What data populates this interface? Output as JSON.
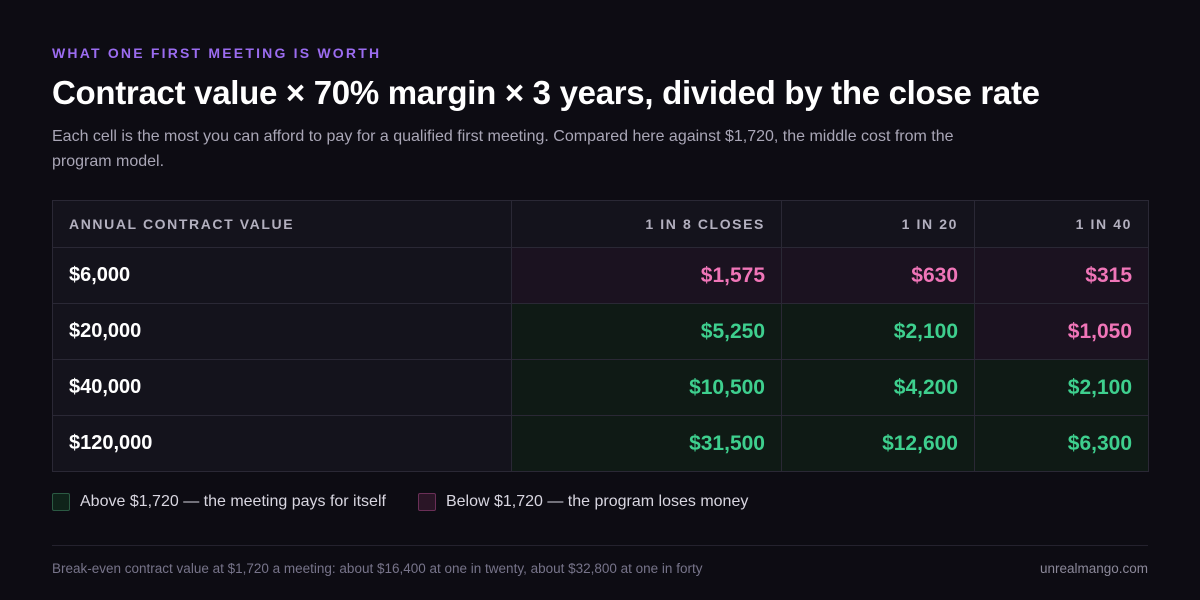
{
  "header": {
    "eyebrow": "WHAT ONE FIRST MEETING IS WORTH",
    "title": "Contract value × 70% margin × 3 years, divided by the close rate",
    "subtitle": "Each cell is the most you can afford to pay for a qualified first meeting. Compared here against $1,720, the middle cost from the program model."
  },
  "colors": {
    "above_text": "#3ecf8e",
    "below_text": "#f075b8",
    "above_fill": "#0f1a15",
    "below_fill": "#1b1220",
    "above_swatch_fill": "#0f231a",
    "above_swatch_border": "#2b5a43",
    "below_swatch_fill": "#2a1526",
    "below_swatch_border": "#6a2f57",
    "accent": "#9b6cf0"
  },
  "chart_data": {
    "type": "table",
    "threshold": 1720,
    "row_header": "ANNUAL CONTRACT VALUE",
    "columns": [
      "1 IN 8 CLOSES",
      "1 IN 20",
      "1 IN 40"
    ],
    "rows": [
      {
        "label": "$6,000",
        "values": [
          1575,
          630,
          315
        ],
        "display": [
          "$1,575",
          "$630",
          "$315"
        ]
      },
      {
        "label": "$20,000",
        "values": [
          5250,
          2100,
          1050
        ],
        "display": [
          "$5,250",
          "$2,100",
          "$1,050"
        ]
      },
      {
        "label": "$40,000",
        "values": [
          10500,
          4200,
          2100
        ],
        "display": [
          "$10,500",
          "$4,200",
          "$2,100"
        ]
      },
      {
        "label": "$120,000",
        "values": [
          31500,
          12600,
          6300
        ],
        "display": [
          "$31,500",
          "$12,600",
          "$6,300"
        ]
      }
    ]
  },
  "legend": {
    "above_label": "Above $1,720 — the meeting pays for itself",
    "below_label": "Below $1,720 — the program loses money"
  },
  "footer": {
    "note": "Break-even contract value at $1,720 a meeting: about $16,400 at one in twenty, about $32,800 at one in forty",
    "credit": "unrealmango.com"
  }
}
